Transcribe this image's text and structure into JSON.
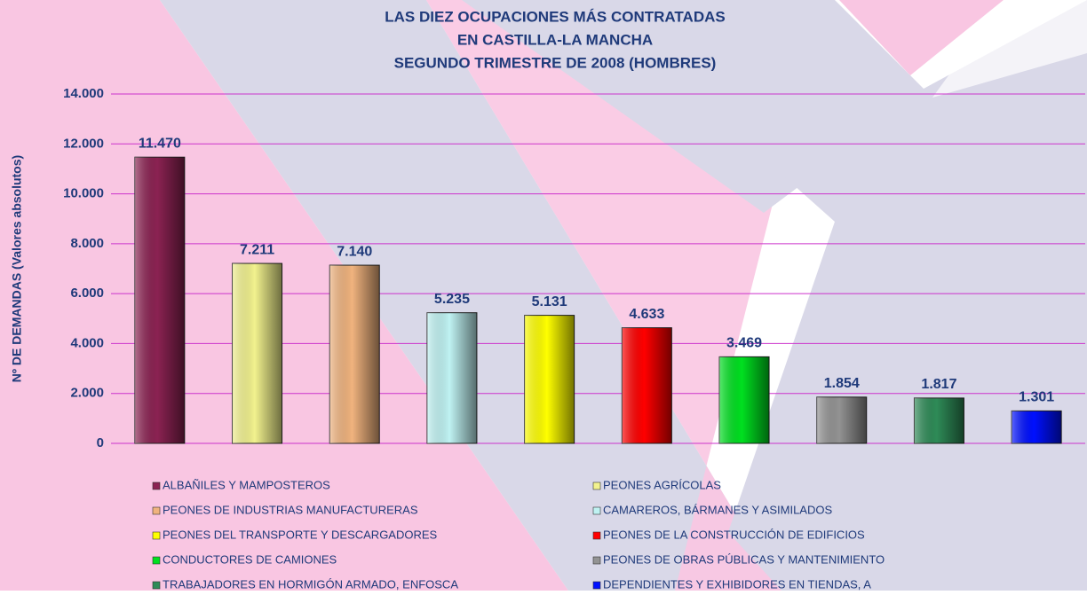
{
  "chart_data": {
    "type": "bar",
    "title": [
      "LAS DIEZ OCUPACIONES MÁS CONTRATADAS",
      "EN CASTILLA-LA MANCHA",
      "SEGUNDO TRIMESTRE DE 2008 (HOMBRES)"
    ],
    "y_label": "Nº DE DEMANDAS (Valores absolutos)",
    "categories": [
      "ALBAÑILES Y MAMPOSTEROS",
      "PEONES AGRÍCOLAS",
      "PEONES DE INDUSTRIAS MANUFACTURERAS",
      "CAMAREROS, BÁRMANES Y ASIMILADOS",
      "PEONES DEL TRANSPORTE Y DESCARGADORES",
      "PEONES DE LA CONSTRUCCIÓN DE EDIFICIOS",
      "CONDUCTORES DE CAMIONES",
      "PEONES DE OBRAS PÚBLICAS Y MANTENIMIENTO",
      "TRABAJADORES EN HORMIGÓN ARMADO, ENFOSCA",
      "DEPENDIENTES Y EXHIBIDORES EN TIENDAS, A"
    ],
    "values": [
      11470,
      7211,
      7140,
      5235,
      5131,
      4633,
      3469,
      1854,
      1817,
      1301
    ],
    "value_labels": [
      "11.470",
      "7.211",
      "7.140",
      "5.235",
      "5.131",
      "4.633",
      "3.469",
      "1.854",
      "1.817",
      "1.301"
    ],
    "colors": [
      "#8b2252",
      "#f2f28e",
      "#f0b37e",
      "#bff2f2",
      "#ffff00",
      "#ff0000",
      "#00e020",
      "#939393",
      "#2e8b57",
      "#0010ff"
    ],
    "ylim": [
      0,
      14000
    ],
    "yticks": [
      0,
      {
        "value": 2000,
        "label": "2.000"
      },
      {
        "value": 4000,
        "label": "4.000"
      },
      {
        "value": 6000,
        "label": "6.000"
      },
      {
        "value": 8000,
        "label": "8.000"
      },
      {
        "value": 10000,
        "label": "10.000"
      },
      {
        "value": 12000,
        "label": "12.000"
      },
      {
        "value": 14000,
        "label": "14.000"
      }
    ],
    "grid": true
  }
}
